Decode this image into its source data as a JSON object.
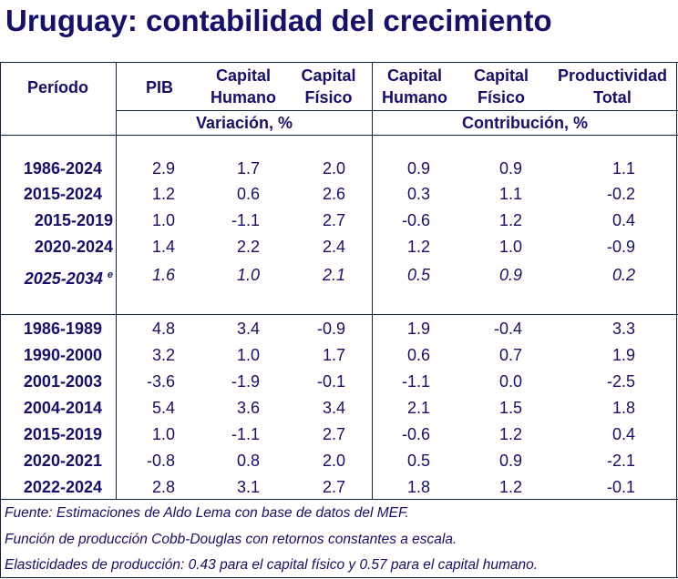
{
  "title": "Uruguay: contabilidad del crecimiento",
  "headers": {
    "period": "Período",
    "pib": "PIB",
    "cap_hum_1": "Capital",
    "cap_hum_2": "Humano",
    "cap_fis_1": "Capital",
    "cap_fis_2": "Físico",
    "c_cap_hum_1": "Capital",
    "c_cap_hum_2": "Humano",
    "c_cap_fis_1": "Capital",
    "c_cap_fis_2": "Físico",
    "prod_1": "Productividad",
    "prod_2": "Total",
    "group_variation": "Variación, %",
    "group_contribution": "Contribución, %"
  },
  "section1": [
    {
      "period": "1986-2024",
      "values": [
        "2.9",
        "1.7",
        "2.0",
        "0.9",
        "0.9",
        "1.1"
      ]
    },
    {
      "period": "2015-2024",
      "values": [
        "1.2",
        "0.6",
        "2.6",
        "0.3",
        "1.1",
        "-0.2"
      ]
    },
    {
      "period": "2015-2019",
      "indent": true,
      "values": [
        "1.0",
        "-1.1",
        "2.7",
        "-0.6",
        "1.2",
        "0.4"
      ]
    },
    {
      "period": "2020-2024",
      "indent": true,
      "values": [
        "1.4",
        "2.2",
        "2.4",
        "1.2",
        "1.0",
        "-0.9"
      ]
    },
    {
      "period": "2025-2034",
      "sup": "e",
      "italic": true,
      "values": [
        "1.6",
        "1.0",
        "2.1",
        "0.5",
        "0.9",
        "0.2"
      ]
    }
  ],
  "section2": [
    {
      "period": "1986-1989",
      "values": [
        "4.8",
        "3.4",
        "-0.9",
        "1.9",
        "-0.4",
        "3.3"
      ]
    },
    {
      "period": "1990-2000",
      "values": [
        "3.2",
        "1.0",
        "1.7",
        "0.6",
        "0.7",
        "1.9"
      ]
    },
    {
      "period": "2001-2003",
      "values": [
        "-3.6",
        "-1.9",
        "-0.1",
        "-1.1",
        "0.0",
        "-2.5"
      ]
    },
    {
      "period": "2004-2014",
      "values": [
        "5.4",
        "3.6",
        "3.4",
        "2.1",
        "1.5",
        "1.8"
      ]
    },
    {
      "period": "2015-2019",
      "values": [
        "1.0",
        "-1.1",
        "2.7",
        "-0.6",
        "1.2",
        "0.4"
      ]
    },
    {
      "period": "2020-2021",
      "values": [
        "-0.8",
        "0.8",
        "2.0",
        "0.5",
        "0.9",
        "-2.1"
      ]
    },
    {
      "period": "2022-2024",
      "values": [
        "2.8",
        "3.1",
        "2.7",
        "1.8",
        "1.2",
        "-0.1"
      ]
    }
  ],
  "footnotes": [
    "Fuente: Estimaciones de Aldo Lema con base de datos del MEF.",
    "Función de producción Cobb-Douglas con retornos constantes a escala.",
    "Elasticidades de producción: 0.43 para el capital físico y 0.57 para el capital humano."
  ]
}
